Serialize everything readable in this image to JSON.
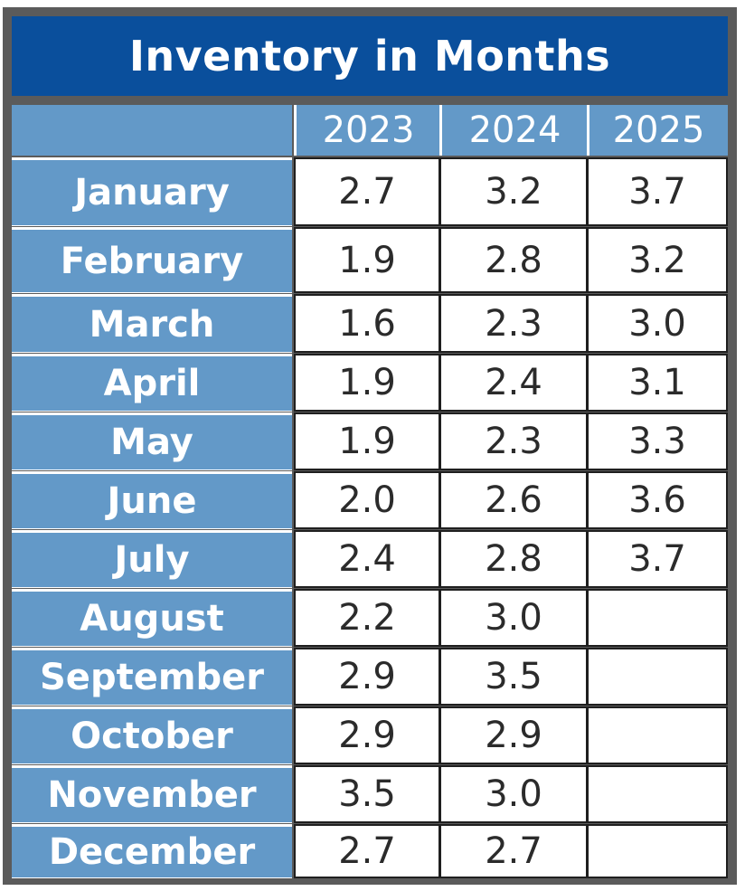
{
  "chart_data": {
    "type": "table",
    "title": "Inventory in Months",
    "columns": [
      "2023",
      "2024",
      "2025"
    ],
    "rows": [
      {
        "label": "January",
        "values": [
          "2.7",
          "3.2",
          "3.7"
        ]
      },
      {
        "label": "February",
        "values": [
          "1.9",
          "2.8",
          "3.2"
        ]
      },
      {
        "label": "March",
        "values": [
          "1.6",
          "2.3",
          "3.0"
        ]
      },
      {
        "label": "April",
        "values": [
          "1.9",
          "2.4",
          "3.1"
        ]
      },
      {
        "label": "May",
        "values": [
          "1.9",
          "2.3",
          "3.3"
        ]
      },
      {
        "label": "June",
        "values": [
          "2.0",
          "2.6",
          "3.6"
        ]
      },
      {
        "label": "July",
        "values": [
          "2.4",
          "2.8",
          "3.7"
        ]
      },
      {
        "label": "August",
        "values": [
          "2.2",
          "3.0",
          ""
        ]
      },
      {
        "label": "September",
        "values": [
          "2.9",
          "3.5",
          ""
        ]
      },
      {
        "label": "October",
        "values": [
          "2.9",
          "2.9",
          ""
        ]
      },
      {
        "label": "November",
        "values": [
          "3.5",
          "3.0",
          ""
        ]
      },
      {
        "label": "December",
        "values": [
          "2.7",
          "2.7",
          ""
        ]
      }
    ]
  },
  "colors": {
    "title_background": "#0a4f9c",
    "header_background": "#6399c8",
    "frame": "#5b5b5b",
    "cell_background": "#ffffff"
  }
}
